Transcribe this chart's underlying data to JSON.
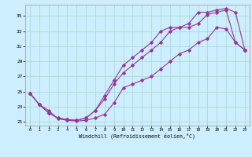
{
  "xlabel": "Windchill (Refroidissement éolien,°C)",
  "bg_color": "#cceeff",
  "grid_color": "#aaddcc",
  "line_color": "#993399",
  "xlim": [
    -0.5,
    23.5
  ],
  "ylim": [
    20.5,
    36.5
  ],
  "xticks": [
    0,
    1,
    2,
    3,
    4,
    5,
    6,
    7,
    8,
    9,
    10,
    11,
    12,
    13,
    14,
    15,
    16,
    17,
    18,
    19,
    20,
    21,
    22,
    23
  ],
  "yticks": [
    21,
    23,
    25,
    27,
    29,
    31,
    33,
    35
  ],
  "line1_x": [
    0,
    1,
    2,
    3,
    4,
    5,
    6,
    7,
    8,
    9,
    10,
    11,
    12,
    13,
    14,
    15,
    16,
    17,
    18,
    19,
    20,
    21,
    22,
    23
  ],
  "line1_y": [
    24.8,
    23.3,
    22.5,
    21.4,
    21.2,
    21.1,
    21.2,
    21.5,
    22.0,
    23.5,
    25.5,
    26.0,
    26.5,
    27.0,
    28.0,
    29.0,
    30.0,
    30.5,
    31.5,
    32.0,
    33.5,
    33.3,
    31.5,
    30.5
  ],
  "line2_x": [
    0,
    1,
    2,
    3,
    4,
    5,
    6,
    7,
    8,
    9,
    10,
    11,
    12,
    13,
    14,
    15,
    16,
    17,
    18,
    19,
    20,
    21,
    22,
    23
  ],
  "line2_y": [
    24.8,
    23.3,
    22.2,
    21.5,
    21.3,
    21.2,
    21.5,
    22.5,
    24.0,
    26.0,
    27.5,
    28.5,
    29.5,
    30.5,
    31.5,
    33.0,
    33.5,
    33.5,
    34.0,
    35.2,
    35.5,
    35.8,
    31.5,
    30.5
  ],
  "line3_x": [
    0,
    1,
    2,
    3,
    4,
    5,
    6,
    7,
    8,
    9,
    10,
    11,
    12,
    13,
    14,
    15,
    16,
    17,
    18,
    19,
    20,
    21,
    22,
    23
  ],
  "line3_y": [
    24.8,
    23.3,
    22.2,
    21.5,
    21.3,
    21.2,
    21.5,
    22.5,
    24.5,
    26.5,
    28.5,
    29.5,
    30.5,
    31.5,
    33.0,
    33.5,
    33.5,
    34.0,
    35.5,
    35.5,
    35.8,
    36.0,
    35.5,
    30.5
  ]
}
